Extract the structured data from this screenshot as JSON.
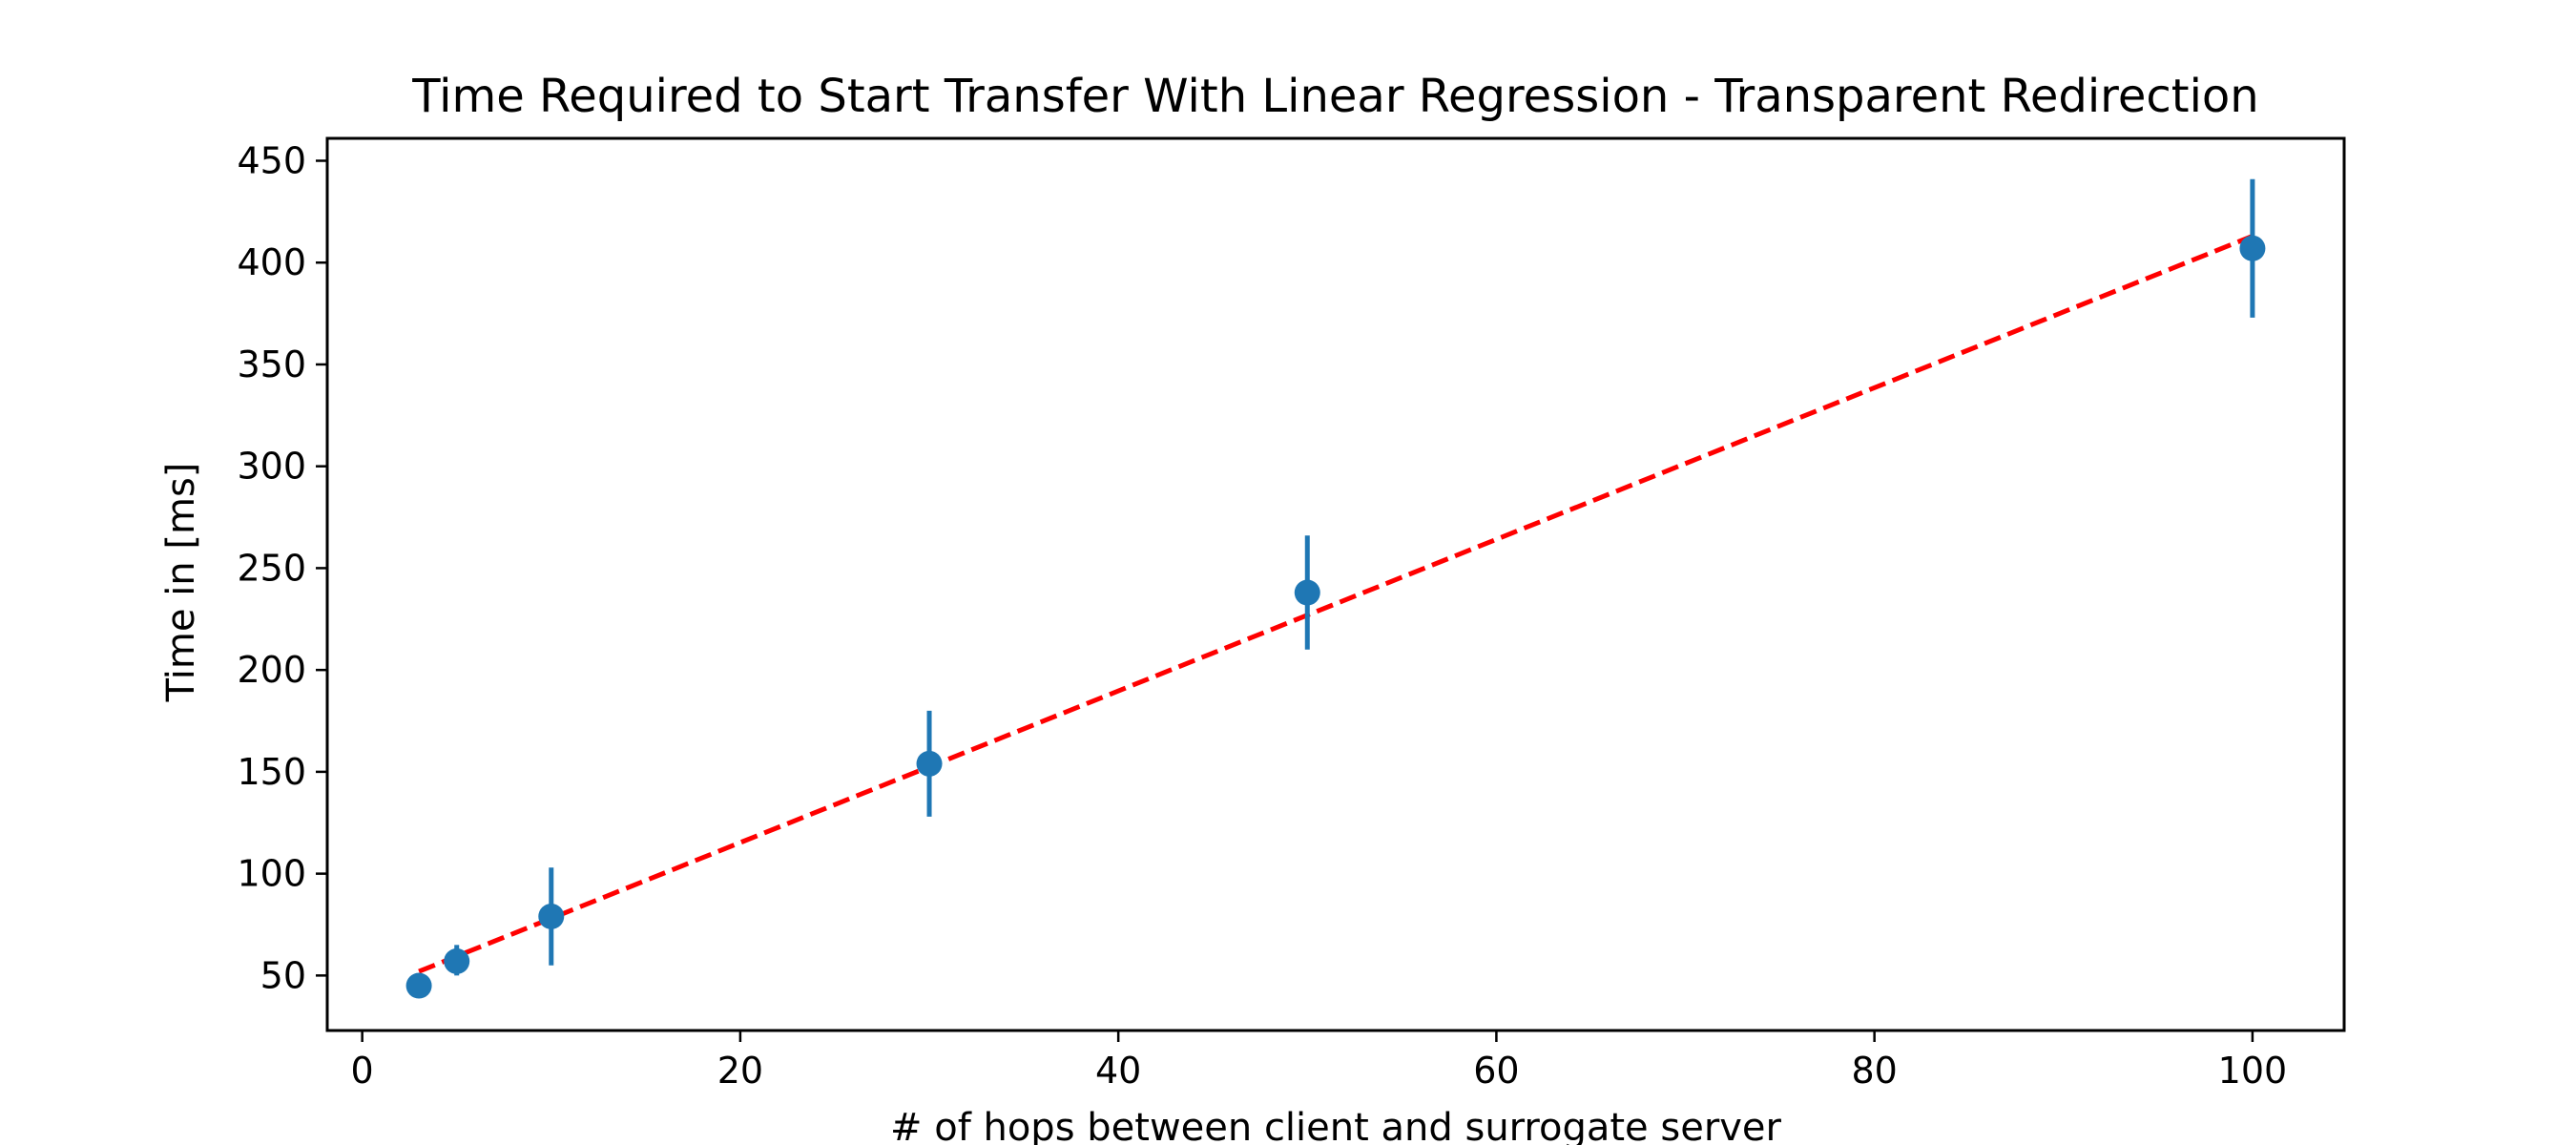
{
  "chart_data": {
    "type": "scatter",
    "title": "Time Required to Start Transfer With Linear Regression - Transparent Redirection",
    "xlabel": "# of hops between client and surrogate server",
    "ylabel": "Time in [ms]",
    "xlim": [
      -1.85,
      104.85
    ],
    "ylim": [
      23,
      461
    ],
    "x_ticks": [
      0,
      20,
      40,
      60,
      80,
      100
    ],
    "y_ticks": [
      50,
      100,
      150,
      200,
      250,
      300,
      350,
      400,
      450
    ],
    "x_tick_labels": [
      "0",
      "20",
      "40",
      "60",
      "80",
      "100"
    ],
    "y_tick_labels": [
      "50",
      "100",
      "150",
      "200",
      "250",
      "300",
      "350",
      "400",
      "450"
    ],
    "grid": false,
    "legend": "none",
    "series": [
      {
        "kind": "errorbar",
        "color": "#1f77b4",
        "points": [
          {
            "x": 3,
            "y": 45,
            "err_low": 44,
            "err_high": 46
          },
          {
            "x": 5,
            "y": 57,
            "err_low": 50,
            "err_high": 65
          },
          {
            "x": 10,
            "y": 79,
            "err_low": 55,
            "err_high": 103
          },
          {
            "x": 30,
            "y": 154,
            "err_low": 128,
            "err_high": 180
          },
          {
            "x": 50,
            "y": 238,
            "err_low": 210,
            "err_high": 266
          },
          {
            "x": 100,
            "y": 407,
            "err_low": 373,
            "err_high": 441
          }
        ]
      },
      {
        "kind": "regression_line",
        "color": "#ff0000",
        "style": "dashed",
        "x": [
          3,
          100
        ],
        "y": [
          52,
          413
        ]
      }
    ]
  }
}
